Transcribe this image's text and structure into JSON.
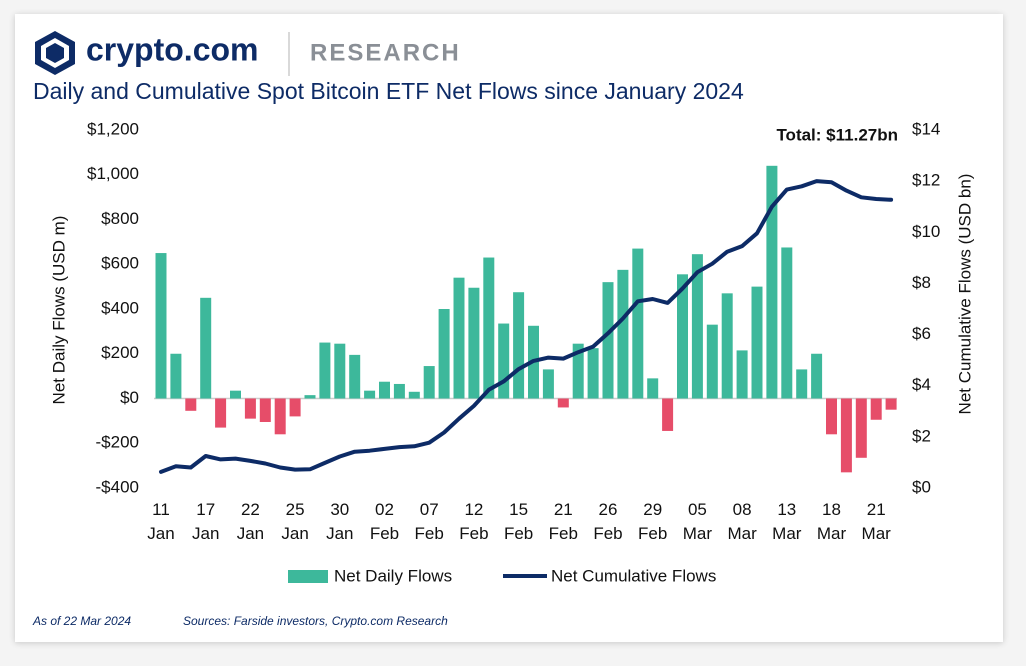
{
  "header": {
    "brand": "crypto.com",
    "section": "RESEARCH"
  },
  "footer": {
    "date": "As of 22 Mar 2024",
    "source": "Sources: Farside investors, Crypto.com Research"
  },
  "chart_data": {
    "type": "bar-line",
    "title": "Daily and Cumulative Spot Bitcoin ETF Net Flows since January 2024",
    "annotation": "Total: $11.27bn",
    "ylabel": "Net Daily Flows (USD m)",
    "y2label": "Net Cumulative Flows (USD bn)",
    "categories": [
      "11 Jan",
      null,
      null,
      "17 Jan",
      null,
      null,
      "22 Jan",
      null,
      null,
      "25 Jan",
      null,
      null,
      "30 Jan",
      null,
      null,
      "02 Feb",
      null,
      null,
      "07 Feb",
      null,
      null,
      "12 Feb",
      null,
      null,
      "15 Feb",
      null,
      null,
      "21 Feb",
      null,
      null,
      "26 Feb",
      null,
      null,
      "29 Feb",
      null,
      null,
      "05 Mar",
      null,
      null,
      "08 Mar",
      null,
      null,
      "13 Mar",
      null,
      null,
      "18 Mar",
      null,
      null,
      "21 Mar",
      null
    ],
    "series": [
      {
        "name": "Net Daily Flows",
        "type": "bar",
        "color": "#3db89b",
        "negative_color": "#e64d69",
        "values": [
          650,
          200,
          -55,
          450,
          -130,
          35,
          -90,
          -105,
          -160,
          -80,
          15,
          250,
          245,
          195,
          35,
          75,
          65,
          30,
          145,
          400,
          540,
          495,
          630,
          335,
          475,
          325,
          130,
          -40,
          245,
          225,
          520,
          575,
          670,
          90,
          -145,
          555,
          645,
          330,
          470,
          215,
          500,
          1040,
          675,
          130,
          200,
          -160,
          -330,
          -265,
          -95,
          -50
        ]
      },
      {
        "name": "Net Cumulative Flows",
        "type": "line",
        "axis": "y2",
        "color": "#0d2b66",
        "values": [
          0.63,
          0.85,
          0.8,
          1.25,
          1.12,
          1.15,
          1.06,
          0.96,
          0.8,
          0.72,
          0.73,
          0.98,
          1.23,
          1.42,
          1.46,
          1.53,
          1.6,
          1.63,
          1.77,
          2.17,
          2.71,
          3.21,
          3.84,
          4.17,
          4.65,
          4.97,
          5.1,
          5.06,
          5.31,
          5.53,
          6.05,
          6.63,
          7.3,
          7.39,
          7.24,
          7.8,
          8.44,
          8.77,
          9.24,
          9.46,
          9.96,
          11.0,
          11.67,
          11.8,
          12.0,
          11.96,
          11.63,
          11.37,
          11.3,
          11.27
        ]
      }
    ],
    "ylim": [
      -400,
      1200
    ],
    "yticks": [
      {
        "value": -400,
        "label": "-$400"
      },
      {
        "value": -200,
        "label": "-$200"
      },
      {
        "value": 0,
        "label": "$0"
      },
      {
        "value": 200,
        "label": "$200"
      },
      {
        "value": 400,
        "label": "$400"
      },
      {
        "value": 600,
        "label": "$600"
      },
      {
        "value": 800,
        "label": "$800"
      },
      {
        "value": 1000,
        "label": "$1,000"
      },
      {
        "value": 1200,
        "label": "$1,200"
      }
    ],
    "y2lim": [
      0,
      14
    ],
    "y2ticks": [
      {
        "value": 0,
        "label": "$0"
      },
      {
        "value": 2,
        "label": "$2"
      },
      {
        "value": 4,
        "label": "$4"
      },
      {
        "value": 6,
        "label": "$6"
      },
      {
        "value": 8,
        "label": "$8"
      },
      {
        "value": 10,
        "label": "$10"
      },
      {
        "value": 12,
        "label": "$12"
      },
      {
        "value": 14,
        "label": "$14"
      }
    ],
    "grid": false,
    "legend": "bottom"
  }
}
